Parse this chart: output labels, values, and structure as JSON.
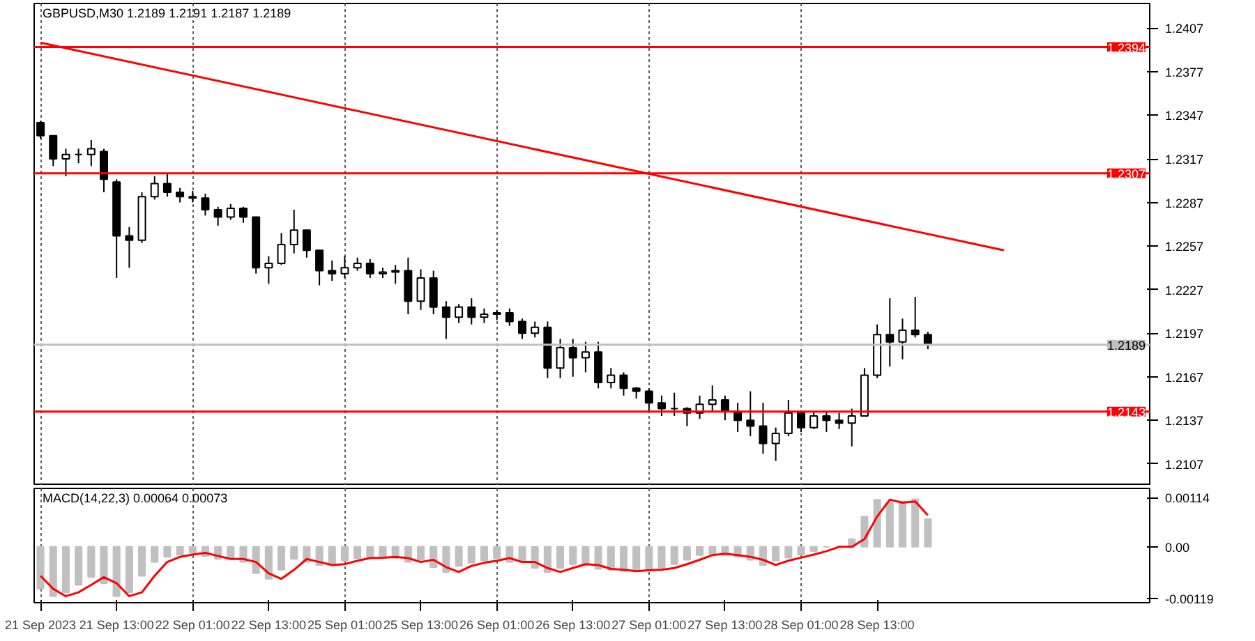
{
  "chart_data": [
    {
      "type": "candlestick",
      "title": "GBPUSD,M30  1.2189 1.2191 1.2187 1.2189",
      "categories": [
        null,
        null,
        null,
        null,
        null,
        null,
        null,
        null,
        null,
        null,
        null,
        null,
        null,
        null,
        null,
        null,
        null,
        null,
        null,
        null,
        null,
        null,
        null,
        null,
        null,
        null,
        null,
        null,
        null,
        null,
        null,
        null,
        null,
        null,
        null,
        null,
        null,
        null,
        null,
        null,
        null,
        null,
        null,
        null,
        null,
        null,
        null,
        null,
        null,
        null,
        null,
        null,
        null,
        null,
        null,
        null,
        null,
        null,
        null,
        null,
        null,
        null,
        null,
        null,
        null,
        null,
        null,
        null,
        null,
        null,
        null,
        null,
        null,
        null,
        null,
        null,
        null,
        null,
        null,
        null,
        null,
        null,
        null,
        null,
        null,
        null,
        null,
        null
      ],
      "ohlc": [
        [
          1.2342,
          1.2343,
          1.2331,
          1.2333
        ],
        [
          1.2333,
          1.2333,
          1.2312,
          1.2317
        ],
        [
          1.2317,
          1.2324,
          1.2305,
          1.232
        ],
        [
          1.232,
          1.2324,
          1.2314,
          1.232
        ],
        [
          1.232,
          1.233,
          1.2312,
          1.2324
        ],
        [
          1.2322,
          1.2324,
          1.2294,
          1.2303
        ],
        [
          1.2301,
          1.2303,
          1.2235,
          1.2264
        ],
        [
          1.2264,
          1.227,
          1.2242,
          1.2261
        ],
        [
          1.2261,
          1.2294,
          1.2259,
          1.2291
        ],
        [
          1.2291,
          1.2305,
          1.2289,
          1.23
        ],
        [
          1.23,
          1.2307,
          1.2291,
          1.2294
        ],
        [
          1.2294,
          1.2297,
          1.2287,
          1.2291
        ],
        [
          1.2291,
          1.2295,
          1.2287,
          1.229
        ],
        [
          1.229,
          1.2293,
          1.2278,
          1.2282
        ],
        [
          1.2282,
          1.2284,
          1.2271,
          1.2277
        ],
        [
          1.2277,
          1.2286,
          1.2275,
          1.2283
        ],
        [
          1.2283,
          1.2284,
          1.2273,
          1.2277
        ],
        [
          1.2277,
          1.2277,
          1.2238,
          1.2242
        ],
        [
          1.2242,
          1.225,
          1.2231,
          1.2245
        ],
        [
          1.2245,
          1.2266,
          1.2244,
          1.2258
        ],
        [
          1.2258,
          1.2282,
          1.2252,
          1.2268
        ],
        [
          1.2268,
          1.2268,
          1.2249,
          1.2254
        ],
        [
          1.2254,
          1.2254,
          1.223,
          1.224
        ],
        [
          1.224,
          1.2247,
          1.2233,
          1.2238
        ],
        [
          1.2238,
          1.225,
          1.2235,
          1.2242
        ],
        [
          1.2242,
          1.2249,
          1.224,
          1.2245
        ],
        [
          1.2245,
          1.2248,
          1.2235,
          1.2238
        ],
        [
          1.2238,
          1.2242,
          1.2235,
          1.2239
        ],
        [
          1.2239,
          1.2244,
          1.2231,
          1.224
        ],
        [
          1.224,
          1.2249,
          1.221,
          1.2219
        ],
        [
          1.2219,
          1.2241,
          1.2213,
          1.2235
        ],
        [
          1.2235,
          1.224,
          1.221,
          1.2215
        ],
        [
          1.2215,
          1.2219,
          1.2193,
          1.2208
        ],
        [
          1.2208,
          1.2217,
          1.2204,
          1.2215
        ],
        [
          1.2215,
          1.2221,
          1.2203,
          1.2208
        ],
        [
          1.2208,
          1.2214,
          1.2204,
          1.221
        ],
        [
          1.221,
          1.2213,
          1.2206,
          1.2211
        ],
        [
          1.2211,
          1.2214,
          1.2202,
          1.2205
        ],
        [
          1.2205,
          1.2207,
          1.2193,
          1.2197
        ],
        [
          1.2197,
          1.2205,
          1.2194,
          1.2201
        ],
        [
          1.2201,
          1.2205,
          1.2166,
          1.2173
        ],
        [
          1.2173,
          1.2193,
          1.2166,
          1.2187
        ],
        [
          1.2187,
          1.2193,
          1.2167,
          1.218
        ],
        [
          1.218,
          1.2191,
          1.217,
          1.2184
        ],
        [
          1.2184,
          1.2191,
          1.2159,
          1.2163
        ],
        [
          1.2163,
          1.2173,
          1.2159,
          1.2168
        ],
        [
          1.2168,
          1.217,
          1.2154,
          1.2159
        ],
        [
          1.2159,
          1.216,
          1.2152,
          1.2157
        ],
        [
          1.2157,
          1.2159,
          1.2143,
          1.2149
        ],
        [
          1.2149,
          1.2154,
          1.214,
          1.2145
        ],
        [
          1.2145,
          1.2156,
          1.214,
          1.2145
        ],
        [
          1.2145,
          1.2146,
          1.2133,
          1.2142
        ],
        [
          1.2142,
          1.2154,
          1.2138,
          1.2148
        ],
        [
          1.2148,
          1.2161,
          1.2143,
          1.2151
        ],
        [
          1.2151,
          1.2154,
          1.2137,
          1.2143
        ],
        [
          1.2143,
          1.2149,
          1.2129,
          1.2137
        ],
        [
          1.2137,
          1.2157,
          1.2126,
          1.2133
        ],
        [
          1.2133,
          1.2149,
          1.2114,
          1.2121
        ],
        [
          1.2121,
          1.2132,
          1.2109,
          1.2128
        ],
        [
          1.2128,
          1.2151,
          1.2126,
          1.2142
        ],
        [
          1.2142,
          1.2142,
          1.2129,
          1.2132
        ],
        [
          1.2132,
          1.2143,
          1.2131,
          1.214
        ],
        [
          1.214,
          1.2143,
          1.2129,
          1.2137
        ],
        [
          1.2137,
          1.2142,
          1.2131,
          1.2135
        ],
        [
          1.2135,
          1.2145,
          1.2119,
          1.214
        ],
        [
          1.214,
          1.2173,
          1.214,
          1.2168
        ],
        [
          1.2168,
          1.2203,
          1.2166,
          1.2196
        ],
        [
          1.2196,
          1.2221,
          1.2174,
          1.2191
        ],
        [
          1.2191,
          1.2207,
          1.2179,
          1.2199
        ],
        [
          1.2199,
          1.2222,
          1.2194,
          1.2196
        ],
        [
          1.2196,
          1.2198,
          1.2186,
          1.2189
        ],
        null,
        null,
        null,
        null,
        null,
        null,
        null,
        null,
        null,
        null,
        null,
        null,
        null,
        null,
        null,
        null,
        null
      ],
      "series": [
        {
          "type": "line",
          "color": "#ff0000",
          "values": [
            1.2397,
            null,
            null,
            null,
            null,
            null,
            null,
            null,
            null,
            null,
            null,
            null,
            null,
            null,
            null,
            null,
            null,
            null,
            null,
            null,
            null,
            null,
            null,
            null,
            null,
            null,
            null,
            null,
            null,
            null,
            null,
            null,
            null,
            null,
            null,
            null,
            null,
            null,
            null,
            null,
            null,
            null,
            null,
            null,
            null,
            null,
            null,
            null,
            null,
            null,
            null,
            null,
            null,
            null,
            null,
            null,
            null,
            null,
            null,
            null,
            null,
            null,
            null,
            null,
            null,
            null,
            null,
            null,
            null,
            null,
            null,
            null,
            null,
            null,
            null,
            null,
            1.2254,
            null,
            null,
            null,
            null,
            null,
            null,
            null,
            null,
            null,
            null,
            null
          ]
        }
      ],
      "ref_lines": [
        {
          "axis": "y",
          "value": 1.2394,
          "label": "1.2394",
          "color": "#ff0000"
        },
        {
          "axis": "y",
          "value": 1.2307,
          "label": "1.2307",
          "color": "#ff0000"
        },
        {
          "axis": "y",
          "value": 1.2143,
          "label": "1.2143",
          "color": "#ff0000"
        },
        {
          "axis": "y",
          "value": 1.2189,
          "label": "1.2189",
          "color": "#c0c0c0"
        }
      ],
      "ylim": [
        1.2092,
        1.2424
      ],
      "yticks": [
        1.2407,
        1.2377,
        1.2347,
        1.2317,
        1.2287,
        1.2257,
        1.2227,
        1.2197,
        1.2167,
        1.2137,
        1.2107
      ],
      "grid": "x",
      "tick_labels": "y"
    },
    {
      "type": "bar",
      "title": "MACD(14,22,3) 0.00064 0.00073",
      "categories": [
        "21 Sep 2023",
        null,
        null,
        null,
        null,
        null,
        "21 Sep 13:00",
        null,
        null,
        null,
        null,
        null,
        "22 Sep 01:00",
        null,
        null,
        null,
        null,
        null,
        "22 Sep 13:00",
        null,
        null,
        null,
        null,
        null,
        "25 Sep 01:00",
        null,
        null,
        null,
        null,
        null,
        "25 Sep 13:00",
        null,
        null,
        null,
        null,
        null,
        "26 Sep 01:00",
        null,
        null,
        null,
        null,
        null,
        "26 Sep 13:00",
        null,
        null,
        null,
        null,
        null,
        "27 Sep 01:00",
        null,
        null,
        null,
        null,
        null,
        "27 Sep 13:00",
        null,
        null,
        null,
        null,
        null,
        "28 Sep 01:00",
        null,
        null,
        null,
        null,
        null,
        "28 Sep 13:00",
        null,
        null,
        null,
        null,
        null,
        null,
        null,
        null,
        null,
        null,
        null,
        null,
        null,
        null,
        null,
        null,
        null,
        null,
        null,
        null,
        null
      ],
      "series": [
        {
          "type": "bar",
          "color": "#c0c0c0",
          "values": [
            -0.00097,
            -0.00114,
            -0.00105,
            -0.00088,
            -0.0007,
            -0.00084,
            -0.00114,
            -0.00105,
            -0.00067,
            -0.00035,
            -0.00023,
            -0.00018,
            -0.00014,
            -0.00021,
            -0.00028,
            -0.00028,
            -0.00035,
            -0.00061,
            -0.00074,
            -0.00053,
            -0.00028,
            -0.00035,
            -0.00042,
            -0.0004,
            -0.00032,
            -0.00026,
            -0.00025,
            -0.00023,
            -0.00026,
            -0.00035,
            -0.0003,
            -0.00047,
            -0.00058,
            -0.00044,
            -0.00037,
            -0.00032,
            -0.00026,
            -0.00035,
            -0.00035,
            -0.00049,
            -0.00058,
            -0.00049,
            -0.0004,
            -0.00042,
            -0.00051,
            -0.00053,
            -0.00056,
            -0.00054,
            -0.00053,
            -0.00049,
            -0.0004,
            -0.0003,
            -0.00019,
            -0.00016,
            -0.00019,
            -0.00023,
            -0.0003,
            -0.00042,
            -0.00032,
            -0.00025,
            -0.00018,
            -0.0001,
            0.0,
            0.0,
            0.00018,
            0.0007,
            0.00109,
            0.00102,
            0.00105,
            0.0011,
            0.00064,
            null,
            null,
            null,
            null,
            null,
            null,
            null,
            null,
            null,
            null,
            null,
            null,
            null,
            null,
            null,
            null,
            null
          ]
        },
        {
          "type": "line",
          "color": "#ff0000",
          "values": [
            -0.00067,
            -0.00097,
            -0.00114,
            -0.00105,
            -0.00088,
            -0.0007,
            -0.00084,
            -0.00114,
            -0.00105,
            -0.00067,
            -0.00035,
            -0.00023,
            -0.00018,
            -0.00014,
            -0.00021,
            -0.00028,
            -0.00028,
            -0.00035,
            -0.00061,
            -0.00074,
            -0.00053,
            -0.00028,
            -0.00035,
            -0.00042,
            -0.0004,
            -0.00032,
            -0.00026,
            -0.00025,
            -0.00023,
            -0.00026,
            -0.00035,
            -0.0003,
            -0.00047,
            -0.00058,
            -0.00044,
            -0.00037,
            -0.00032,
            -0.00026,
            -0.00035,
            -0.00035,
            -0.00049,
            -0.00058,
            -0.00049,
            -0.0004,
            -0.00042,
            -0.00051,
            -0.00053,
            -0.00056,
            -0.00054,
            -0.00053,
            -0.00049,
            -0.0004,
            -0.0003,
            -0.00019,
            -0.00016,
            -0.00019,
            -0.00023,
            -0.0003,
            -0.00042,
            -0.00032,
            -0.00025,
            -0.00018,
            -0.0001,
            0.0,
            0.0,
            0.00018,
            0.0007,
            0.00109,
            0.00102,
            0.00105,
            0.00073,
            null,
            null,
            null,
            null,
            null,
            null,
            null,
            null,
            null,
            null,
            null,
            null,
            null,
            null,
            null,
            null,
            null
          ]
        }
      ],
      "ylim": [
        -0.00129,
        0.00135
      ],
      "yticks": [
        0.00114,
        {
          "value": 0,
          "label": "0.00"
        },
        -0.00119
      ],
      "grid": "x"
    }
  ]
}
